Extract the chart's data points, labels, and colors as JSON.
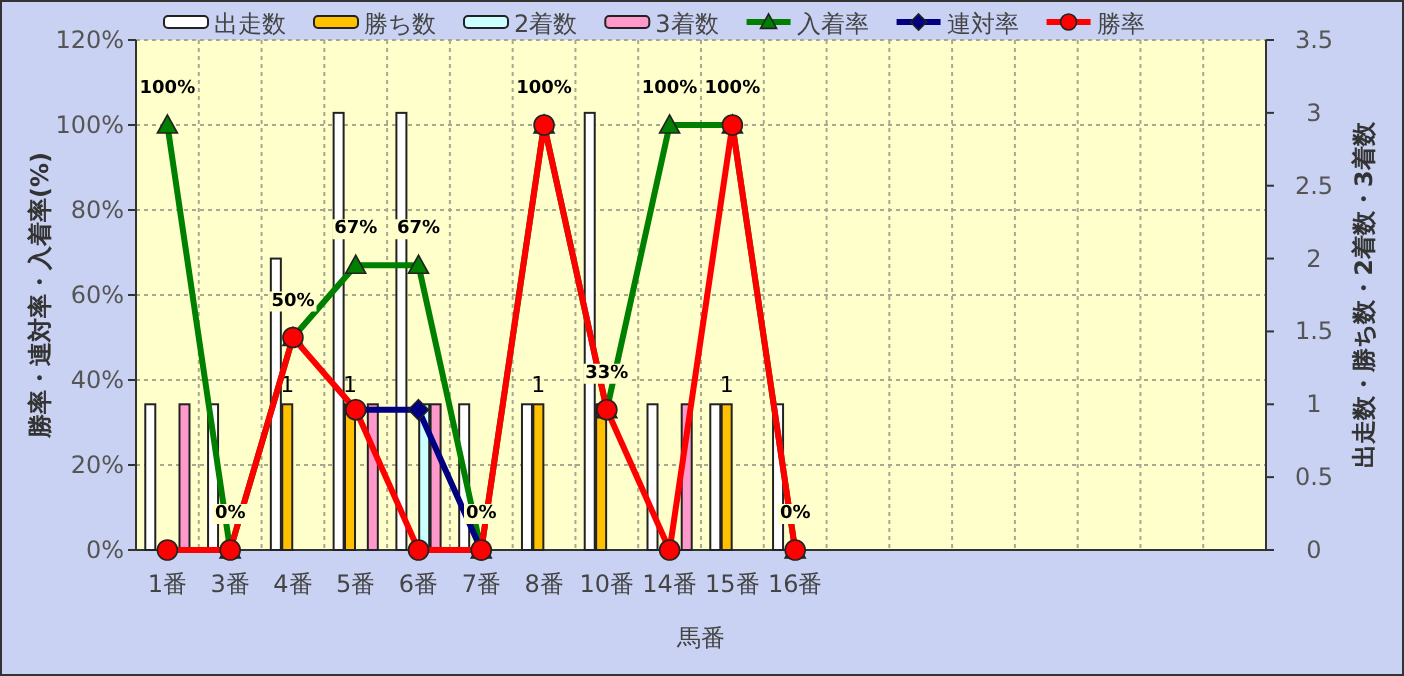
{
  "chart_data": {
    "type": "bar",
    "xlabel": "馬番",
    "ylabel": "勝率・連対率・入着率(%)",
    "y2label": "出走数・勝ち数・2着数・3着数",
    "categories": [
      "1番",
      "3番",
      "4番",
      "5番",
      "6番",
      "7番",
      "8番",
      "10番",
      "14番",
      "15番",
      "16番",
      null,
      null,
      null,
      null,
      null,
      null,
      null
    ],
    "series": [
      {
        "name": "出走数",
        "axis": "y2",
        "color": "#ffffff",
        "values": [
          1,
          1,
          2,
          3,
          3,
          1,
          1,
          3,
          1,
          1,
          1,
          null,
          null,
          null,
          null,
          null,
          null,
          null
        ]
      },
      {
        "name": "勝ち数",
        "axis": "y2",
        "color": "#ffc000",
        "values": [
          0,
          0,
          1,
          1,
          0,
          0,
          1,
          1,
          0,
          1,
          0,
          null,
          null,
          null,
          null,
          null,
          null,
          null
        ],
        "value_labels": [
          null,
          null,
          "1",
          "1",
          null,
          null,
          "1",
          null,
          null,
          "1",
          null,
          null,
          null,
          null,
          null,
          null,
          null,
          null
        ]
      },
      {
        "name": "2着数",
        "axis": "y2",
        "color": "#ccffff",
        "values": [
          0,
          0,
          0,
          0,
          1,
          0,
          0,
          0,
          0,
          0,
          0,
          null,
          null,
          null,
          null,
          null,
          null,
          null
        ]
      },
      {
        "name": "3着数",
        "axis": "y2",
        "color": "#ff99cc",
        "values": [
          1,
          0,
          0,
          1,
          1,
          0,
          0,
          0,
          1,
          0,
          0,
          null,
          null,
          null,
          null,
          null,
          null,
          null
        ]
      },
      {
        "name": "入着率",
        "type": "line",
        "axis": "y",
        "color": "#008000",
        "marker": "triangle",
        "values": [
          100,
          0,
          50,
          67,
          67,
          0,
          100,
          33,
          100,
          100,
          0,
          null,
          null,
          null,
          null,
          null,
          null,
          null
        ],
        "value_labels": [
          "100%",
          "0%",
          "50%",
          "67%",
          "67%",
          "0%",
          "100%",
          "33%",
          "100%",
          "100%",
          "0%",
          null,
          null,
          null,
          null,
          null,
          null,
          null
        ]
      },
      {
        "name": "連対率",
        "type": "line",
        "axis": "y",
        "color": "#000080",
        "marker": "diamond",
        "values": [
          null,
          null,
          null,
          33,
          33,
          0,
          null,
          null,
          null,
          null,
          null,
          null,
          null,
          null,
          null,
          null,
          null,
          null
        ]
      },
      {
        "name": "勝率",
        "type": "line",
        "axis": "y",
        "color": "#ff0000",
        "marker": "circle",
        "values": [
          0,
          0,
          50,
          33,
          0,
          0,
          100,
          33,
          0,
          100,
          0,
          null,
          null,
          null,
          null,
          null,
          null,
          null
        ]
      }
    ],
    "ylim": [
      0,
      120
    ],
    "yticks": [
      {
        "value": 0,
        "label": "0%"
      },
      {
        "value": 20,
        "label": "20%"
      },
      {
        "value": 40,
        "label": "40%"
      },
      {
        "value": 60,
        "label": "60%"
      },
      {
        "value": 80,
        "label": "80%"
      },
      {
        "value": 100,
        "label": "100%"
      },
      {
        "value": 120,
        "label": "120%"
      }
    ],
    "y2lim": [
      0,
      3.5
    ],
    "y2ticks": [
      0,
      0.5,
      1,
      1.5,
      2,
      2.5,
      3,
      3.5
    ],
    "grid": true,
    "legend": "top"
  }
}
